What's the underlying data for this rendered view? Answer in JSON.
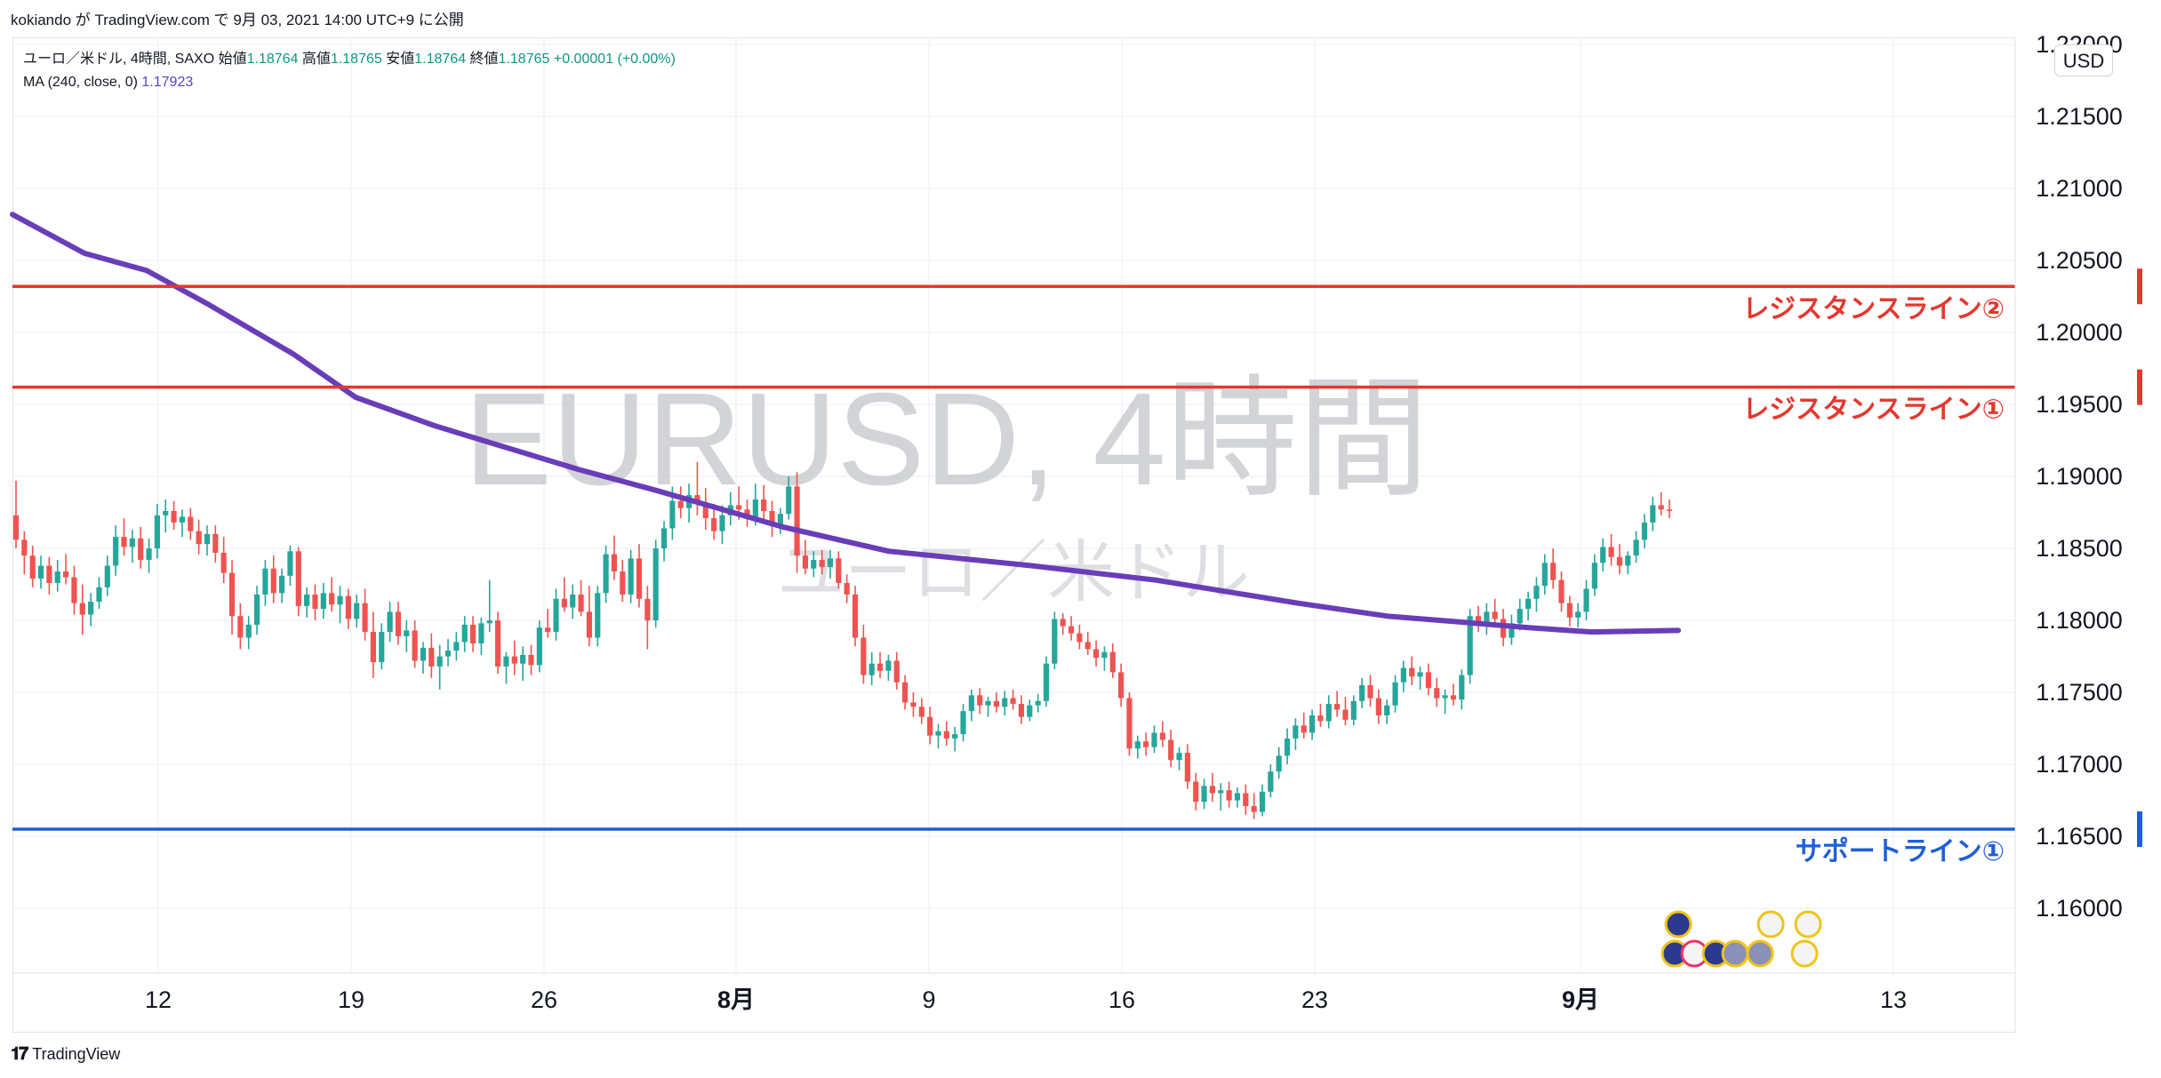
{
  "header": {
    "author": "kokiando",
    "publish_line": "kokiando が TradingView.com で 9月 03, 2021 14:00 UTC+9 に公開"
  },
  "legend": {
    "symbol_line_prefix": "ユーロ／米ドル, 4時間, SAXO",
    "open_label": "始値",
    "open": "1.18764",
    "high_label": "高値",
    "high": "1.18765",
    "low_label": "安値",
    "low": "1.18764",
    "close_label": "終値",
    "close": "1.18765",
    "change": "+0.00001 (+0.00%)",
    "ma_label": "MA (240, close, 0)",
    "ma_value": "1.17923"
  },
  "currency_button": "USD",
  "watermark": {
    "symbol": "EURUSD, 4時間",
    "name": "ユーロ／米ドル"
  },
  "footer": {
    "brand": "TradingView"
  },
  "chart_data": {
    "type": "candlestick",
    "symbol": "EURUSD",
    "timeframe": "4時間",
    "ylim": [
      1.1555,
      1.2205
    ],
    "y_ticks": [
      "1.16000",
      "1.16500",
      "1.17000",
      "1.17500",
      "1.18000",
      "1.18500",
      "1.19000",
      "1.19500",
      "1.20000",
      "1.20500",
      "1.21000",
      "1.21500",
      "1.22000"
    ],
    "x_ticks": [
      {
        "label": "12",
        "bold": false
      },
      {
        "label": "19",
        "bold": false
      },
      {
        "label": "26",
        "bold": false
      },
      {
        "label": "8月",
        "bold": true
      },
      {
        "label": "9",
        "bold": false
      },
      {
        "label": "16",
        "bold": false
      },
      {
        "label": "23",
        "bold": false
      },
      {
        "label": "9月",
        "bold": true
      },
      {
        "label": "13",
        "bold": false
      }
    ],
    "colors": {
      "up": "#26a69a",
      "down": "#ef5350",
      "ma": "#6a3db8",
      "resistance": "#e5372e",
      "support": "#1f5fd6"
    },
    "horizontal_lines": [
      {
        "price": 1.2032,
        "price_label": "1.20320",
        "name": "レジスタンスライン②",
        "color": "#e5372e"
      },
      {
        "price": 1.1962,
        "price_label": "1.19620",
        "name": "レジスタンスライン①",
        "color": "#e5372e"
      },
      {
        "price": 1.1655,
        "price_label": "1.16550",
        "name": "サポートライン①",
        "color": "#1f5fd6"
      }
    ],
    "ma_series": {
      "name": "MA (240, close, 0)",
      "points": [
        [
          "7/7 06:00",
          1.2082
        ],
        [
          "7/9 18:00",
          1.2055
        ],
        [
          "7/12 14:00",
          1.2043
        ],
        [
          "7/15 02:00",
          1.202
        ],
        [
          "7/19 10:00",
          1.1985
        ],
        [
          "7/22 06:00",
          1.1955
        ],
        [
          "7/26 02:00",
          1.1935
        ],
        [
          "7/29 02:00",
          1.192
        ],
        [
          "8/2 10:00",
          1.1905
        ],
        [
          "8/5 06:00",
          1.189
        ],
        [
          "8/10 02:00",
          1.1865
        ],
        [
          "8/12 22:00",
          1.1848
        ],
        [
          "8/16 06:00",
          1.1838
        ],
        [
          "8/19 02:00",
          1.1828
        ],
        [
          "8/23 02:00",
          1.1812
        ],
        [
          "8/25 22:00",
          1.1803
        ],
        [
          "8/31 02:00",
          1.1795
        ],
        [
          "9/2 06:00",
          1.1792
        ],
        [
          "9/3 10:00",
          1.1793
        ]
      ]
    },
    "ohlc_4h": [
      [
        1.1873,
        1.1897,
        1.185,
        1.1856
      ],
      [
        1.1856,
        1.1862,
        1.1832,
        1.1845
      ],
      [
        1.1845,
        1.1852,
        1.1823,
        1.1829
      ],
      [
        1.1829,
        1.1845,
        1.1822,
        1.1838
      ],
      [
        1.1838,
        1.1844,
        1.1818,
        1.1826
      ],
      [
        1.1826,
        1.1842,
        1.182,
        1.1834
      ],
      [
        1.1834,
        1.1846,
        1.1825,
        1.183
      ],
      [
        1.183,
        1.1838,
        1.1804,
        1.1812
      ],
      [
        1.1812,
        1.1825,
        1.179,
        1.1804
      ],
      [
        1.1804,
        1.1819,
        1.1796,
        1.1813
      ],
      [
        1.1813,
        1.183,
        1.1808,
        1.1823
      ],
      [
        1.1823,
        1.1845,
        1.1817,
        1.1838
      ],
      [
        1.1838,
        1.1866,
        1.1831,
        1.1858
      ],
      [
        1.1858,
        1.1871,
        1.1845,
        1.1851
      ],
      [
        1.1851,
        1.1863,
        1.184,
        1.1857
      ],
      [
        1.1857,
        1.1865,
        1.1836,
        1.1842
      ],
      [
        1.1842,
        1.1857,
        1.1833,
        1.185
      ],
      [
        1.185,
        1.1881,
        1.1843,
        1.1873
      ],
      [
        1.1873,
        1.1884,
        1.1861,
        1.1876
      ],
      [
        1.1876,
        1.1883,
        1.1863,
        1.1868
      ],
      [
        1.1868,
        1.1877,
        1.1858,
        1.1872
      ],
      [
        1.1872,
        1.1878,
        1.1856,
        1.1862
      ],
      [
        1.1862,
        1.187,
        1.1846,
        1.1853
      ],
      [
        1.1853,
        1.1866,
        1.1845,
        1.186
      ],
      [
        1.186,
        1.1866,
        1.184,
        1.1847
      ],
      [
        1.1847,
        1.1858,
        1.1826,
        1.1833
      ],
      [
        1.1833,
        1.1842,
        1.179,
        1.1803
      ],
      [
        1.1803,
        1.1812,
        1.178,
        1.1788
      ],
      [
        1.1788,
        1.1803,
        1.178,
        1.1797
      ],
      [
        1.1797,
        1.1824,
        1.179,
        1.1818
      ],
      [
        1.1818,
        1.1842,
        1.181,
        1.1836
      ],
      [
        1.1836,
        1.1845,
        1.1812,
        1.1819
      ],
      [
        1.1819,
        1.1836,
        1.1812,
        1.1831
      ],
      [
        1.1831,
        1.1852,
        1.1824,
        1.1848
      ],
      [
        1.1848,
        1.1851,
        1.1803,
        1.181
      ],
      [
        1.181,
        1.1823,
        1.1802,
        1.1818
      ],
      [
        1.1818,
        1.1825,
        1.18,
        1.1808
      ],
      [
        1.1808,
        1.1826,
        1.1801,
        1.1819
      ],
      [
        1.1819,
        1.183,
        1.1806,
        1.1811
      ],
      [
        1.1811,
        1.1824,
        1.1798,
        1.1817
      ],
      [
        1.1817,
        1.1822,
        1.1794,
        1.1801
      ],
      [
        1.1801,
        1.1818,
        1.1795,
        1.1812
      ],
      [
        1.1812,
        1.1822,
        1.1786,
        1.1792
      ],
      [
        1.1792,
        1.1806,
        1.176,
        1.1771
      ],
      [
        1.1771,
        1.1798,
        1.1766,
        1.1792
      ],
      [
        1.1792,
        1.1813,
        1.1785,
        1.1806
      ],
      [
        1.1806,
        1.1813,
        1.1783,
        1.1789
      ],
      [
        1.1789,
        1.18,
        1.1778,
        1.1793
      ],
      [
        1.1793,
        1.18,
        1.1767,
        1.1772
      ],
      [
        1.1772,
        1.1785,
        1.1763,
        1.1781
      ],
      [
        1.1781,
        1.1791,
        1.176,
        1.1768
      ],
      [
        1.1768,
        1.1783,
        1.1752,
        1.1775
      ],
      [
        1.1775,
        1.1787,
        1.1768,
        1.1779
      ],
      [
        1.1779,
        1.1792,
        1.1772,
        1.1785
      ],
      [
        1.1785,
        1.1803,
        1.1778,
        1.1797
      ],
      [
        1.1797,
        1.1803,
        1.1778,
        1.1784
      ],
      [
        1.1784,
        1.1802,
        1.1776,
        1.1798
      ],
      [
        1.1798,
        1.1828,
        1.1792,
        1.18
      ],
      [
        1.18,
        1.1806,
        1.1763,
        1.1768
      ],
      [
        1.1768,
        1.1778,
        1.1756,
        1.1775
      ],
      [
        1.1775,
        1.1786,
        1.1762,
        1.177
      ],
      [
        1.177,
        1.1782,
        1.1758,
        1.1776
      ],
      [
        1.1776,
        1.1783,
        1.1762,
        1.1769
      ],
      [
        1.1769,
        1.18,
        1.1764,
        1.1795
      ],
      [
        1.1795,
        1.1808,
        1.1788,
        1.1792
      ],
      [
        1.1792,
        1.1822,
        1.1786,
        1.1815
      ],
      [
        1.1815,
        1.183,
        1.1806,
        1.1809
      ],
      [
        1.1809,
        1.1825,
        1.1801,
        1.1818
      ],
      [
        1.1818,
        1.1828,
        1.1803,
        1.1806
      ],
      [
        1.1806,
        1.1824,
        1.1782,
        1.1788
      ],
      [
        1.1788,
        1.1824,
        1.1782,
        1.1819
      ],
      [
        1.1819,
        1.1852,
        1.1812,
        1.1846
      ],
      [
        1.1846,
        1.1859,
        1.1828,
        1.1834
      ],
      [
        1.1834,
        1.1842,
        1.1813,
        1.1818
      ],
      [
        1.1818,
        1.1849,
        1.1812,
        1.1843
      ],
      [
        1.1843,
        1.1853,
        1.1809,
        1.1815
      ],
      [
        1.1815,
        1.1824,
        1.178,
        1.18
      ],
      [
        1.18,
        1.1856,
        1.1795,
        1.185
      ],
      [
        1.185,
        1.1869,
        1.1841,
        1.1864
      ],
      [
        1.1864,
        1.1893,
        1.1856,
        1.1883
      ],
      [
        1.1883,
        1.1893,
        1.1871,
        1.1878
      ],
      [
        1.1878,
        1.1895,
        1.1868,
        1.1887
      ],
      [
        1.1887,
        1.191,
        1.1873,
        1.1881
      ],
      [
        1.1881,
        1.1892,
        1.1863,
        1.1871
      ],
      [
        1.1871,
        1.1881,
        1.1856,
        1.1862
      ],
      [
        1.1862,
        1.188,
        1.1853,
        1.1873
      ],
      [
        1.1873,
        1.1889,
        1.1866,
        1.188
      ],
      [
        1.188,
        1.1893,
        1.187,
        1.1877
      ],
      [
        1.1877,
        1.1884,
        1.1865,
        1.1872
      ],
      [
        1.1872,
        1.1895,
        1.1866,
        1.1884
      ],
      [
        1.1884,
        1.1894,
        1.1868,
        1.1876
      ],
      [
        1.1876,
        1.1883,
        1.1858,
        1.1866
      ],
      [
        1.1866,
        1.1878,
        1.186,
        1.1874
      ],
      [
        1.1874,
        1.19,
        1.187,
        1.1893
      ],
      [
        1.1893,
        1.1903,
        1.1833,
        1.1845
      ],
      [
        1.1845,
        1.1856,
        1.1832,
        1.1836
      ],
      [
        1.1836,
        1.1848,
        1.183,
        1.1842
      ],
      [
        1.1842,
        1.1849,
        1.1832,
        1.1837
      ],
      [
        1.1837,
        1.1849,
        1.1829,
        1.1843
      ],
      [
        1.1843,
        1.1848,
        1.1822,
        1.1826
      ],
      [
        1.1826,
        1.1832,
        1.1812,
        1.1818
      ],
      [
        1.1818,
        1.1824,
        1.1782,
        1.1788
      ],
      [
        1.1788,
        1.1797,
        1.1756,
        1.1762
      ],
      [
        1.1762,
        1.1778,
        1.1755,
        1.177
      ],
      [
        1.177,
        1.1778,
        1.176,
        1.1765
      ],
      [
        1.1765,
        1.1776,
        1.1758,
        1.1772
      ],
      [
        1.1772,
        1.1778,
        1.1752,
        1.1757
      ],
      [
        1.1757,
        1.1762,
        1.1738,
        1.1743
      ],
      [
        1.1743,
        1.175,
        1.1733,
        1.174
      ],
      [
        1.174,
        1.1746,
        1.1728,
        1.1733
      ],
      [
        1.1733,
        1.174,
        1.1714,
        1.172
      ],
      [
        1.172,
        1.1728,
        1.1711,
        1.1723
      ],
      [
        1.1723,
        1.173,
        1.1713,
        1.1718
      ],
      [
        1.1718,
        1.1726,
        1.1709,
        1.1721
      ],
      [
        1.1721,
        1.1742,
        1.1716,
        1.1737
      ],
      [
        1.1737,
        1.1752,
        1.173,
        1.1748
      ],
      [
        1.1748,
        1.1753,
        1.1735,
        1.1741
      ],
      [
        1.1741,
        1.1747,
        1.1733,
        1.1744
      ],
      [
        1.1744,
        1.175,
        1.1736,
        1.174
      ],
      [
        1.174,
        1.1751,
        1.1734,
        1.1746
      ],
      [
        1.1746,
        1.1752,
        1.1738,
        1.1742
      ],
      [
        1.1742,
        1.1748,
        1.1728,
        1.1733
      ],
      [
        1.1733,
        1.1745,
        1.173,
        1.1741
      ],
      [
        1.1741,
        1.1749,
        1.1736,
        1.1744
      ],
      [
        1.1744,
        1.1775,
        1.174,
        1.177
      ],
      [
        1.177,
        1.1806,
        1.1766,
        1.1801
      ],
      [
        1.1801,
        1.1805,
        1.179,
        1.1796
      ],
      [
        1.1796,
        1.1803,
        1.1786,
        1.1791
      ],
      [
        1.1791,
        1.1797,
        1.178,
        1.1785
      ],
      [
        1.1785,
        1.1792,
        1.1776,
        1.178
      ],
      [
        1.178,
        1.1786,
        1.1768,
        1.1774
      ],
      [
        1.1774,
        1.1782,
        1.1765,
        1.1778
      ],
      [
        1.1778,
        1.1784,
        1.176,
        1.1764
      ],
      [
        1.1764,
        1.177,
        1.174,
        1.1746
      ],
      [
        1.1746,
        1.175,
        1.1706,
        1.1711
      ],
      [
        1.1711,
        1.172,
        1.1704,
        1.1716
      ],
      [
        1.1716,
        1.1722,
        1.1706,
        1.1712
      ],
      [
        1.1712,
        1.1727,
        1.1708,
        1.1722
      ],
      [
        1.1722,
        1.173,
        1.1712,
        1.1717
      ],
      [
        1.1717,
        1.1724,
        1.1698,
        1.1703
      ],
      [
        1.1703,
        1.1712,
        1.1696,
        1.1708
      ],
      [
        1.1708,
        1.1714,
        1.1683,
        1.1688
      ],
      [
        1.1688,
        1.1694,
        1.1668,
        1.1674
      ],
      [
        1.1674,
        1.169,
        1.1669,
        1.1685
      ],
      [
        1.1685,
        1.1694,
        1.1674,
        1.168
      ],
      [
        1.168,
        1.1687,
        1.1668,
        1.1682
      ],
      [
        1.1682,
        1.1688,
        1.167,
        1.1675
      ],
      [
        1.1675,
        1.1684,
        1.167,
        1.168
      ],
      [
        1.168,
        1.1686,
        1.1665,
        1.1671
      ],
      [
        1.1671,
        1.168,
        1.1662,
        1.1667
      ],
      [
        1.1667,
        1.1686,
        1.1664,
        1.1681
      ],
      [
        1.1681,
        1.17,
        1.1677,
        1.1695
      ],
      [
        1.1695,
        1.1712,
        1.169,
        1.1706
      ],
      [
        1.1706,
        1.1725,
        1.17,
        1.1718
      ],
      [
        1.1718,
        1.1732,
        1.171,
        1.1727
      ],
      [
        1.1727,
        1.1736,
        1.1718,
        1.1722
      ],
      [
        1.1722,
        1.1738,
        1.1717,
        1.1734
      ],
      [
        1.1734,
        1.1742,
        1.1726,
        1.173
      ],
      [
        1.173,
        1.1748,
        1.1725,
        1.1742
      ],
      [
        1.1742,
        1.1751,
        1.1733,
        1.1738
      ],
      [
        1.1738,
        1.1747,
        1.1727,
        1.1731
      ],
      [
        1.1731,
        1.1748,
        1.1727,
        1.1744
      ],
      [
        1.1744,
        1.176,
        1.1739,
        1.1755
      ],
      [
        1.1755,
        1.1762,
        1.174,
        1.1746
      ],
      [
        1.1746,
        1.1752,
        1.1728,
        1.1734
      ],
      [
        1.1734,
        1.1745,
        1.1728,
        1.1741
      ],
      [
        1.1741,
        1.1762,
        1.1736,
        1.1757
      ],
      [
        1.1757,
        1.1772,
        1.175,
        1.1767
      ],
      [
        1.1767,
        1.1775,
        1.1755,
        1.1761
      ],
      [
        1.1761,
        1.1768,
        1.1752,
        1.1764
      ],
      [
        1.1764,
        1.177,
        1.1748,
        1.1753
      ],
      [
        1.1753,
        1.176,
        1.174,
        1.1746
      ],
      [
        1.1746,
        1.1752,
        1.1735,
        1.1748
      ],
      [
        1.1748,
        1.1756,
        1.1741,
        1.1745
      ],
      [
        1.1745,
        1.1766,
        1.1738,
        1.1762
      ],
      [
        1.1762,
        1.1808,
        1.1756,
        1.1803
      ],
      [
        1.1803,
        1.181,
        1.1792,
        1.1797
      ],
      [
        1.1797,
        1.1812,
        1.179,
        1.1806
      ],
      [
        1.1806,
        1.1815,
        1.1795,
        1.1801
      ],
      [
        1.1801,
        1.1808,
        1.1782,
        1.1788
      ],
      [
        1.1788,
        1.1804,
        1.1783,
        1.1798
      ],
      [
        1.1798,
        1.1815,
        1.1793,
        1.1808
      ],
      [
        1.1808,
        1.182,
        1.18,
        1.1815
      ],
      [
        1.1815,
        1.183,
        1.1806,
        1.1824
      ],
      [
        1.1824,
        1.1846,
        1.1818,
        1.184
      ],
      [
        1.184,
        1.185,
        1.1822,
        1.1828
      ],
      [
        1.1828,
        1.1834,
        1.1806,
        1.1812
      ],
      [
        1.1812,
        1.1817,
        1.1796,
        1.1802
      ],
      [
        1.1802,
        1.1812,
        1.1795,
        1.1806
      ],
      [
        1.1806,
        1.1828,
        1.18,
        1.1822
      ],
      [
        1.1822,
        1.1846,
        1.1817,
        1.184
      ],
      [
        1.184,
        1.1857,
        1.1834,
        1.1851
      ],
      [
        1.1851,
        1.186,
        1.1838,
        1.1844
      ],
      [
        1.1844,
        1.1853,
        1.1832,
        1.1838
      ],
      [
        1.1838,
        1.1848,
        1.1832,
        1.1845
      ],
      [
        1.1845,
        1.1862,
        1.184,
        1.1856
      ],
      [
        1.1856,
        1.1874,
        1.185,
        1.1868
      ],
      [
        1.1868,
        1.1886,
        1.1862,
        1.188
      ],
      [
        1.188,
        1.1889,
        1.1873,
        1.1877
      ],
      [
        1.1877,
        1.1884,
        1.1871,
        1.1876
      ]
    ]
  }
}
